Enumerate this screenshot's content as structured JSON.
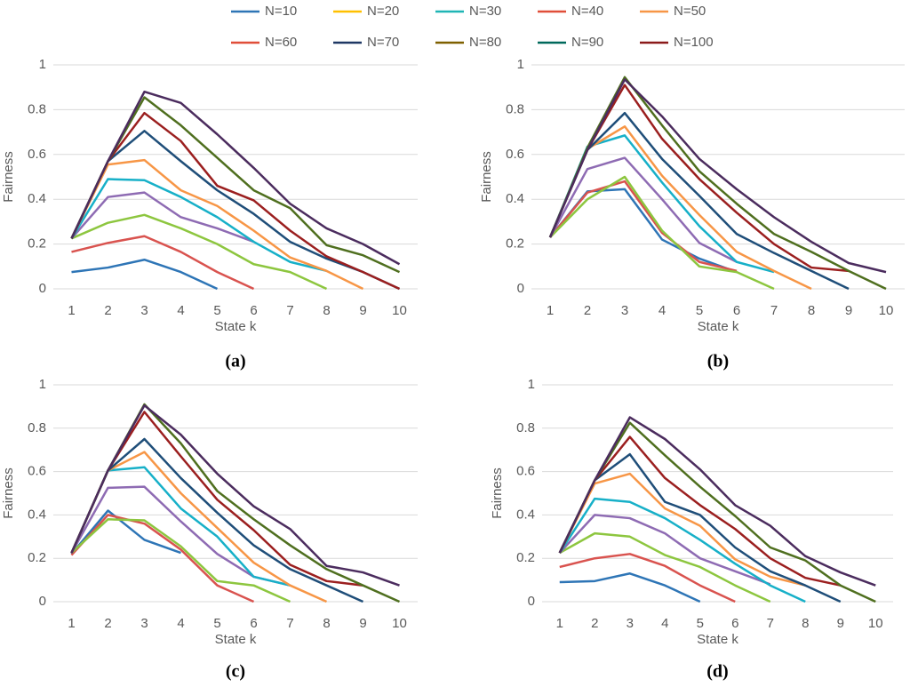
{
  "legend": [
    {
      "name": "N=10",
      "color": "#2e75b6"
    },
    {
      "name": "N=20",
      "color": "#ffc000"
    },
    {
      "name": "N=30",
      "color": "#1fb5b5"
    },
    {
      "name": "N=40",
      "color": "#e04e39"
    },
    {
      "name": "N=50",
      "color": "#f79646"
    },
    {
      "name": "N=60",
      "color": "#e04e39"
    },
    {
      "name": "N=70",
      "color": "#1f3864"
    },
    {
      "name": "N=80",
      "color": "#7f6000"
    },
    {
      "name": "N=90",
      "color": "#00695c"
    },
    {
      "name": "N=100",
      "color": "#8b1a1a"
    }
  ],
  "chart_data": [
    {
      "type": "line",
      "caption": "(a)",
      "x_label": "State k",
      "y_label": "Fairness",
      "categories": [
        "1",
        "2",
        "3",
        "4",
        "5",
        "6",
        "7",
        "8",
        "9",
        "10"
      ],
      "ylim": [
        0,
        1
      ],
      "yticks": [
        0,
        0.2,
        0.4,
        0.6,
        0.8,
        1
      ],
      "grid": true,
      "series": [
        {
          "color": "#2e75b6",
          "values": [
            0.075,
            0.095,
            0.13,
            0.075,
            0,
            null,
            null,
            null,
            null,
            null
          ]
        },
        {
          "color": "#d9534f",
          "values": [
            0.165,
            0.205,
            0.235,
            0.165,
            0.075,
            0,
            null,
            null,
            null,
            null
          ]
        },
        {
          "color": "#8dc63f",
          "values": [
            0.225,
            0.295,
            0.33,
            0.27,
            0.2,
            0.11,
            0.075,
            0,
            null,
            null
          ]
        },
        {
          "color": "#8e6bb3",
          "values": [
            0.225,
            0.41,
            0.43,
            0.32,
            0.27,
            0.21,
            null,
            null,
            null,
            null
          ]
        },
        {
          "color": "#17b0c8",
          "values": [
            0.225,
            0.49,
            0.485,
            0.41,
            0.32,
            0.21,
            0.12,
            0.08,
            null,
            null
          ]
        },
        {
          "color": "#f79646",
          "values": [
            0.225,
            0.555,
            0.575,
            0.44,
            0.37,
            0.26,
            0.14,
            0.08,
            0,
            null
          ]
        },
        {
          "color": "#1f4e79",
          "values": [
            0.225,
            0.57,
            0.705,
            0.57,
            0.44,
            0.335,
            0.21,
            0.135,
            0.075,
            0
          ]
        },
        {
          "color": "#9b1f1f",
          "values": [
            0.225,
            0.57,
            0.785,
            0.66,
            0.46,
            0.395,
            0.26,
            0.145,
            0.075,
            0
          ]
        },
        {
          "color": "#4f6f1f",
          "values": [
            0.225,
            0.57,
            0.855,
            0.73,
            0.585,
            0.44,
            0.36,
            0.195,
            0.15,
            0.075
          ]
        },
        {
          "color": "#4b2c5e",
          "values": [
            0.225,
            0.57,
            0.88,
            0.83,
            0.69,
            0.54,
            0.38,
            0.27,
            0.2,
            0.11
          ]
        }
      ]
    },
    {
      "type": "line",
      "caption": "(b)",
      "x_label": "State k",
      "y_label": "Fairness",
      "categories": [
        "1",
        "2",
        "3",
        "4",
        "5",
        "6",
        "7",
        "8",
        "9",
        "10"
      ],
      "ylim": [
        0,
        1
      ],
      "yticks": [
        0,
        0.2,
        0.4,
        0.6,
        0.8,
        1
      ],
      "grid": true,
      "series": [
        {
          "color": "#2e75b6",
          "values": [
            0.23,
            0.435,
            0.445,
            0.22,
            0.135,
            0.075,
            null,
            null,
            null,
            null
          ]
        },
        {
          "color": "#d9534f",
          "values": [
            0.23,
            0.43,
            0.48,
            0.25,
            0.12,
            0.08,
            null,
            null,
            null,
            null
          ]
        },
        {
          "color": "#8dc63f",
          "values": [
            0.23,
            0.4,
            0.5,
            0.26,
            0.1,
            0.075,
            0,
            null,
            null,
            null
          ]
        },
        {
          "color": "#8e6bb3",
          "values": [
            0.23,
            0.535,
            0.585,
            0.4,
            0.205,
            0.12,
            null,
            null,
            null,
            null
          ]
        },
        {
          "color": "#17b0c8",
          "values": [
            0.23,
            0.635,
            0.685,
            0.475,
            0.28,
            0.12,
            0.075,
            null,
            null,
            null
          ]
        },
        {
          "color": "#f79646",
          "values": [
            0.23,
            0.625,
            0.725,
            0.505,
            0.33,
            0.165,
            0.08,
            0,
            null,
            null
          ]
        },
        {
          "color": "#1f4e79",
          "values": [
            0.23,
            0.62,
            0.785,
            0.58,
            0.415,
            0.245,
            0.16,
            0.08,
            0,
            null
          ]
        },
        {
          "color": "#9b1f1f",
          "values": [
            0.23,
            0.62,
            0.91,
            0.67,
            0.49,
            0.34,
            0.2,
            0.095,
            0.08,
            null
          ]
        },
        {
          "color": "#4f6f1f",
          "values": [
            0.23,
            0.63,
            0.945,
            0.73,
            0.525,
            0.38,
            0.245,
            0.165,
            0.08,
            0
          ]
        },
        {
          "color": "#4b2c5e",
          "values": [
            0.23,
            0.62,
            0.935,
            0.77,
            0.58,
            0.445,
            0.32,
            0.21,
            0.115,
            0.075
          ]
        }
      ]
    },
    {
      "type": "line",
      "caption": "(c)",
      "x_label": "State k",
      "y_label": "Fairness",
      "categories": [
        "1",
        "2",
        "3",
        "4",
        "5",
        "6",
        "7",
        "8",
        "9",
        "10"
      ],
      "ylim": [
        0,
        1
      ],
      "yticks": [
        0,
        0.2,
        0.4,
        0.6,
        0.8,
        1
      ],
      "grid": true,
      "series": [
        {
          "color": "#2e75b6",
          "values": [
            0.22,
            0.42,
            0.285,
            0.225,
            null,
            null,
            null,
            null,
            null,
            null
          ]
        },
        {
          "color": "#d9534f",
          "values": [
            0.215,
            0.4,
            0.36,
            0.24,
            0.075,
            0,
            null,
            null,
            null,
            null
          ]
        },
        {
          "color": "#8dc63f",
          "values": [
            0.225,
            0.38,
            0.375,
            0.255,
            0.095,
            0.075,
            0,
            null,
            null,
            null
          ]
        },
        {
          "color": "#8e6bb3",
          "values": [
            0.225,
            0.525,
            0.53,
            0.37,
            0.22,
            0.115,
            0.075,
            null,
            null,
            null
          ]
        },
        {
          "color": "#17b0c8",
          "values": [
            0.225,
            0.605,
            0.62,
            0.43,
            0.3,
            0.115,
            0.075,
            null,
            null,
            null
          ]
        },
        {
          "color": "#f79646",
          "values": [
            0.225,
            0.605,
            0.69,
            0.5,
            0.34,
            0.18,
            0.075,
            0,
            null,
            null
          ]
        },
        {
          "color": "#1f4e79",
          "values": [
            0.225,
            0.605,
            0.75,
            0.57,
            0.41,
            0.26,
            0.15,
            0.075,
            0,
            null
          ]
        },
        {
          "color": "#9b1f1f",
          "values": [
            0.225,
            0.605,
            0.875,
            0.67,
            0.47,
            0.33,
            0.17,
            0.095,
            0.075,
            null
          ]
        },
        {
          "color": "#4f6f1f",
          "values": [
            0.225,
            0.605,
            0.91,
            0.73,
            0.51,
            0.38,
            0.26,
            0.15,
            0.075,
            0
          ]
        },
        {
          "color": "#4b2c5e",
          "values": [
            0.225,
            0.605,
            0.905,
            0.77,
            0.59,
            0.44,
            0.335,
            0.165,
            0.135,
            0.075
          ]
        }
      ]
    },
    {
      "type": "line",
      "caption": "(d)",
      "x_label": "State k",
      "y_label": "Fairness",
      "categories": [
        "1",
        "2",
        "3",
        "4",
        "5",
        "6",
        "7",
        "8",
        "9",
        "10"
      ],
      "ylim": [
        0,
        1
      ],
      "yticks": [
        0,
        0.2,
        0.4,
        0.6,
        0.8,
        1
      ],
      "grid": true,
      "series": [
        {
          "color": "#2e75b6",
          "values": [
            0.09,
            0.095,
            0.13,
            0.075,
            0,
            null,
            null,
            null,
            null,
            null
          ]
        },
        {
          "color": "#d9534f",
          "values": [
            0.16,
            0.2,
            0.22,
            0.165,
            0.075,
            0,
            null,
            null,
            null,
            null
          ]
        },
        {
          "color": "#8dc63f",
          "values": [
            0.225,
            0.315,
            0.3,
            0.215,
            0.16,
            0.075,
            0,
            null,
            null,
            null
          ]
        },
        {
          "color": "#8e6bb3",
          "values": [
            0.225,
            0.4,
            0.385,
            0.315,
            0.2,
            0.14,
            0.08,
            null,
            null,
            null
          ]
        },
        {
          "color": "#17b0c8",
          "values": [
            0.225,
            0.475,
            0.46,
            0.385,
            0.285,
            0.175,
            0.075,
            0,
            null,
            null
          ]
        },
        {
          "color": "#f79646",
          "values": [
            0.225,
            0.545,
            0.59,
            0.43,
            0.35,
            0.195,
            0.115,
            0.075,
            null,
            null
          ]
        },
        {
          "color": "#1f4e79",
          "values": [
            0.225,
            0.56,
            0.68,
            0.46,
            0.4,
            0.25,
            0.14,
            0.075,
            0,
            null
          ]
        },
        {
          "color": "#9b1f1f",
          "values": [
            0.225,
            0.56,
            0.76,
            0.57,
            0.445,
            0.335,
            0.2,
            0.11,
            0.075,
            null
          ]
        },
        {
          "color": "#4f6f1f",
          "values": [
            0.225,
            0.56,
            0.825,
            0.675,
            0.53,
            0.395,
            0.25,
            0.19,
            0.075,
            0
          ]
        },
        {
          "color": "#4b2c5e",
          "values": [
            0.225,
            0.56,
            0.85,
            0.75,
            0.61,
            0.445,
            0.35,
            0.21,
            0.135,
            0.075
          ]
        }
      ]
    }
  ]
}
